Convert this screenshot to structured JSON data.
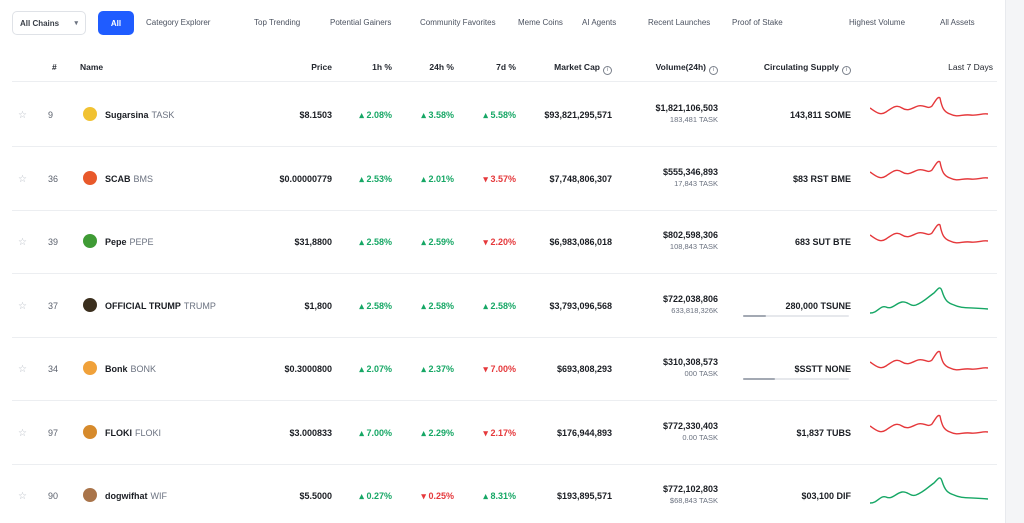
{
  "filters": {
    "dropdown_label": "All Chains",
    "active_pill": "All",
    "links": [
      "Category Explorer",
      "Top Trending",
      "Potential Gainers",
      "Community Favorites",
      "Meme Coins",
      "AI Agents",
      "Recent Launches",
      "Proof of Stake",
      "Highest Volume",
      "All Assets"
    ]
  },
  "table": {
    "headers": {
      "rank": "#",
      "name": "Name",
      "price": "Price",
      "h1": "1h %",
      "h24": "24h %",
      "d7": "7d %",
      "mcap": "Market Cap",
      "volume": "Volume(24h)",
      "supply": "Circulating Supply",
      "chart": "Last 7 Days"
    },
    "rows": [
      {
        "rank": "9",
        "name": "Sugarsina",
        "symbol": "TASK",
        "price": "$8.1503",
        "h1": "2.08%",
        "h1_dir": "up",
        "h24": "3.58%",
        "h24_dir": "up",
        "d7": "5.58%",
        "d7_dir": "up",
        "mcap": "$93,821,295,571",
        "volume": "$1,821,106,503",
        "volume_sub": "183,481 TASK",
        "supply": "143,811 SOME",
        "supply_progress": null,
        "trend": "down",
        "icon_color": "#f1c232"
      },
      {
        "rank": "36",
        "name": "SCAB",
        "symbol": "BMS",
        "price": "$0.00000779",
        "h1": "2.53%",
        "h1_dir": "up",
        "h24": "2.01%",
        "h24_dir": "up",
        "d7": "3.57%",
        "d7_dir": "down",
        "mcap": "$7,748,806,307",
        "volume": "$555,346,893",
        "volume_sub": "17,843 TASK",
        "supply": "$83 RST BME",
        "supply_progress": null,
        "trend": "down",
        "icon_color": "#e8592b"
      },
      {
        "rank": "39",
        "name": "Pepe",
        "symbol": "PEPE",
        "price": "$31,8800",
        "h1": "2.58%",
        "h1_dir": "up",
        "h24": "2.59%",
        "h24_dir": "up",
        "d7": "2.20%",
        "d7_dir": "down",
        "mcap": "$6,983,086,018",
        "volume": "$802,598,306",
        "volume_sub": "108,843 TASK",
        "supply": "683 SUT BTE",
        "supply_progress": null,
        "trend": "down",
        "icon_color": "#3f9b35"
      },
      {
        "rank": "37",
        "name": "OFFICIAL TRUMP",
        "symbol": "TRUMP",
        "price": "$1,800",
        "h1": "2.58%",
        "h1_dir": "up",
        "h24": "2.58%",
        "h24_dir": "up",
        "d7": "2.58%",
        "d7_dir": "up",
        "mcap": "$3,793,096,568",
        "volume": "$722,038,806",
        "volume_sub": "633,818,326K",
        "supply": "280,000 TSUNE",
        "supply_progress": 0.22,
        "trend": "up",
        "icon_color": "#3b2f1e"
      },
      {
        "rank": "34",
        "name": "Bonk",
        "symbol": "BONK",
        "price": "$0.3000800",
        "h1": "2.07%",
        "h1_dir": "up",
        "h24": "2.37%",
        "h24_dir": "up",
        "d7": "7.00%",
        "d7_dir": "down",
        "mcap": "$693,808,293",
        "volume": "$310,308,573",
        "volume_sub": "000 TASK",
        "supply": "$SSTT NONE",
        "supply_progress": 0.3,
        "trend": "down",
        "icon_color": "#f0a13a"
      },
      {
        "rank": "97",
        "name": "FLOKI",
        "symbol": "FLOKI",
        "price": "$3.000833",
        "h1": "7.00%",
        "h1_dir": "up",
        "h24": "2.29%",
        "h24_dir": "up",
        "d7": "2.17%",
        "d7_dir": "down",
        "mcap": "$176,944,893",
        "volume": "$772,330,403",
        "volume_sub": "0.00 TASK",
        "supply": "$1,837 TUBS",
        "supply_progress": null,
        "trend": "down",
        "icon_color": "#d68a2c"
      },
      {
        "rank": "90",
        "name": "dogwifhat",
        "symbol": "WIF",
        "price": "$5.5000",
        "h1": "0.27%",
        "h1_dir": "up",
        "h24": "0.25%",
        "h24_dir": "down",
        "d7": "8.31%",
        "d7_dir": "up",
        "mcap": "$193,895,571",
        "volume": "$772,102,803",
        "volume_sub": "$68,843 TASK",
        "supply": "$03,100 DIF",
        "supply_progress": null,
        "trend": "up",
        "icon_color": "#a9744a"
      }
    ]
  }
}
